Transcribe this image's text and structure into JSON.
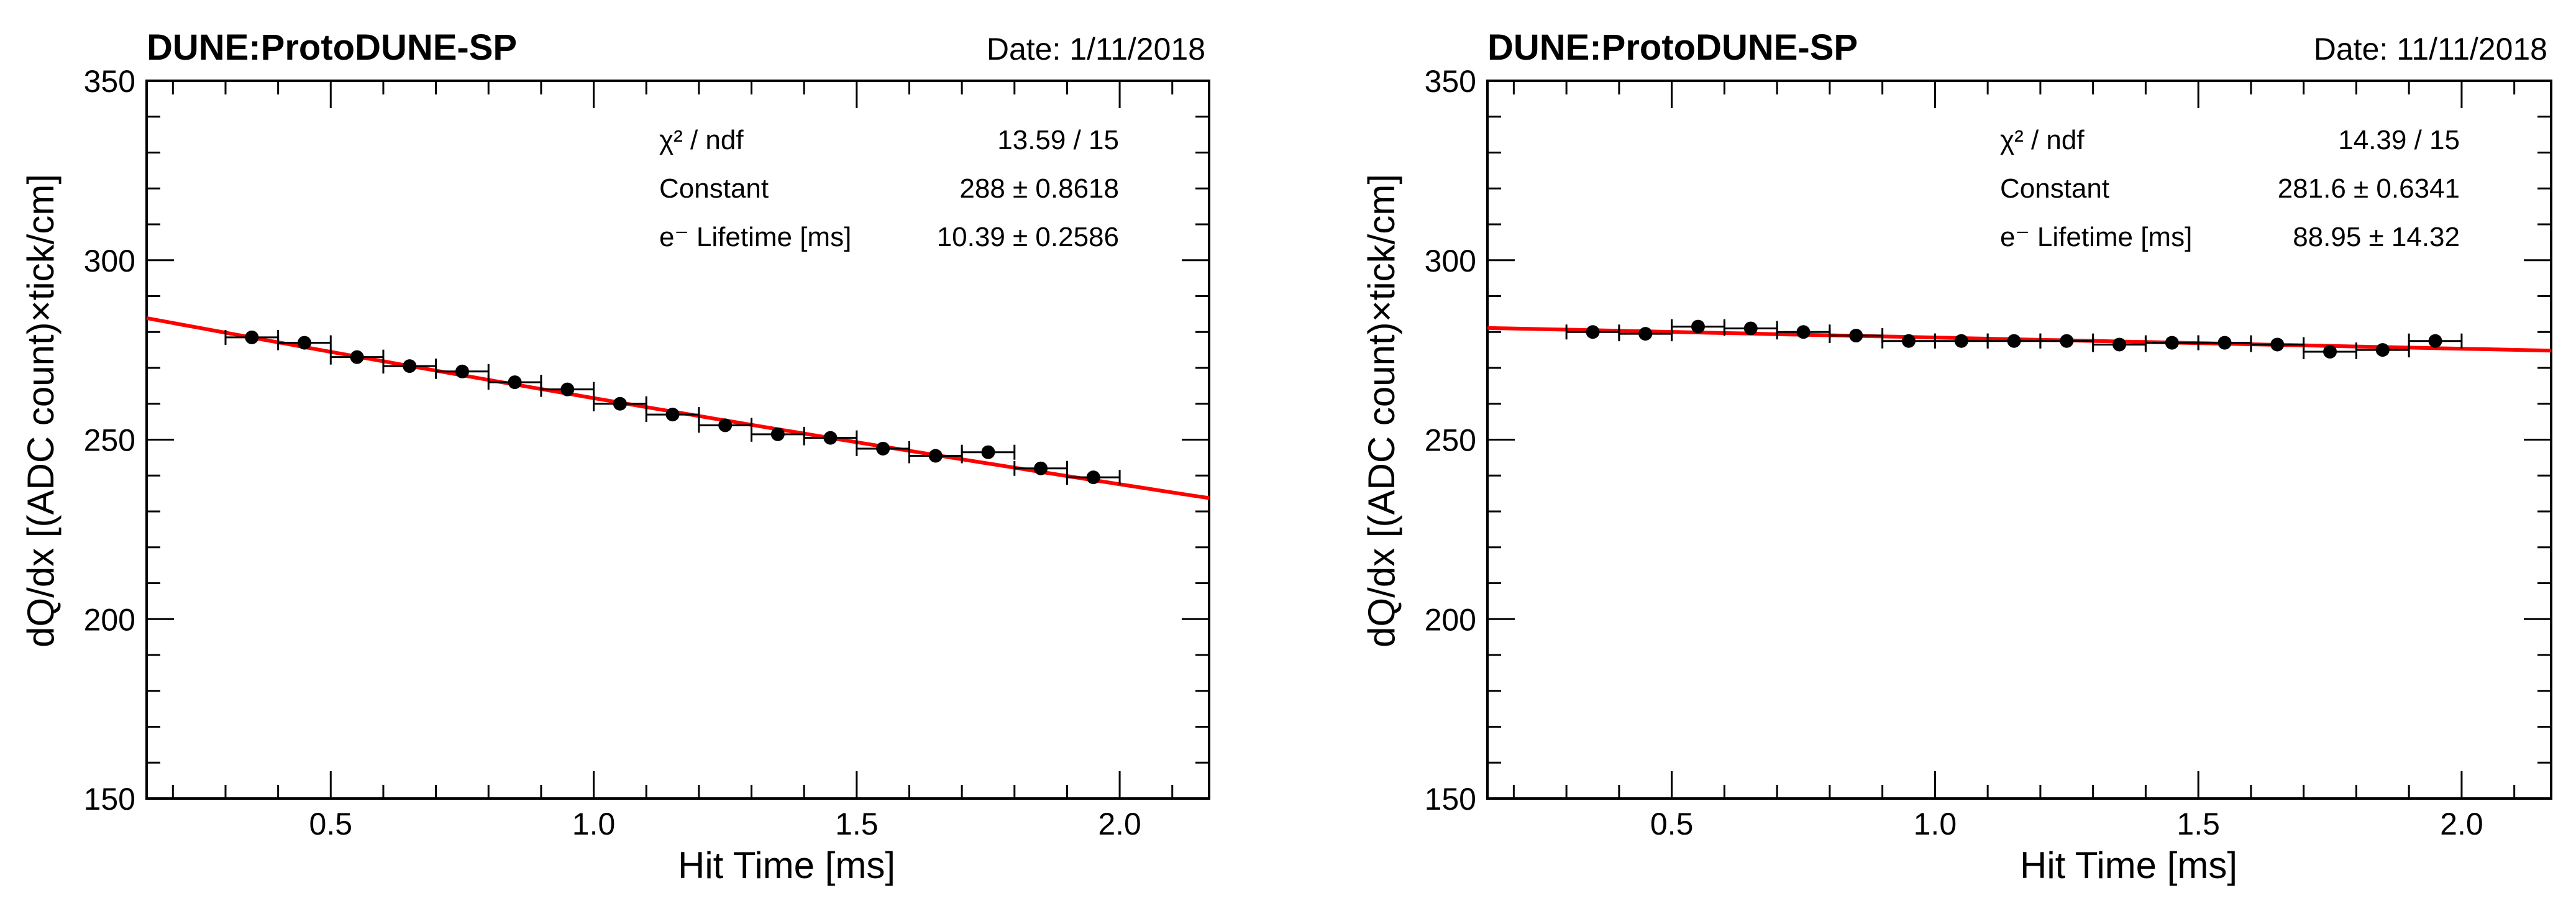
{
  "chart_data": [
    {
      "type": "scatter",
      "experiment": "DUNE:ProtoDUNE-SP",
      "date": "Date: 1/11/2018",
      "xlabel": "Hit Time [ms]",
      "ylabel": "dQ/dx [(ADC count)×tick/cm]",
      "xlim": [
        0.15,
        2.17
      ],
      "ylim": [
        150,
        350
      ],
      "xticks": [
        0.5,
        1.0,
        1.5,
        2.0
      ],
      "xtick_labels": [
        "0.5",
        "1.0",
        "1.5",
        "2.0"
      ],
      "yticks": [
        150,
        200,
        250,
        300,
        350
      ],
      "ytick_labels": [
        "150",
        "200",
        "250",
        "300",
        "350"
      ],
      "x_bin_half_width": 0.05,
      "x": [
        0.35,
        0.45,
        0.55,
        0.65,
        0.75,
        0.85,
        0.95,
        1.05,
        1.15,
        1.25,
        1.35,
        1.45,
        1.55,
        1.65,
        1.75,
        1.85,
        1.95
      ],
      "y": [
        278.5,
        277,
        273,
        270.5,
        269,
        266,
        264,
        260,
        257,
        254,
        251.5,
        250.5,
        247.5,
        245.5,
        246.5,
        242,
        239.5
      ],
      "fit": {
        "function": "exponential",
        "constant": 288,
        "lifetime_ms": 10.39
      },
      "stats": [
        {
          "label": "χ² / ndf",
          "value": "13.59 / 15"
        },
        {
          "label": "Constant",
          "value": "288 ± 0.8618"
        },
        {
          "label": "e⁻ Lifetime [ms]",
          "value": "10.39 ± 0.2586"
        }
      ],
      "colors": {
        "fit": "#ff0000",
        "points": "#000000"
      }
    },
    {
      "type": "scatter",
      "experiment": "DUNE:ProtoDUNE-SP",
      "date": "Date: 11/11/2018",
      "xlabel": "Hit Time [ms]",
      "ylabel": "dQ/dx [(ADC count)×tick/cm]",
      "xlim": [
        0.15,
        2.17
      ],
      "ylim": [
        150,
        350
      ],
      "xticks": [
        0.5,
        1.0,
        1.5,
        2.0
      ],
      "xtick_labels": [
        "0.5",
        "1.0",
        "1.5",
        "2.0"
      ],
      "yticks": [
        150,
        200,
        250,
        300,
        350
      ],
      "ytick_labels": [
        "150",
        "200",
        "250",
        "300",
        "350"
      ],
      "x_bin_half_width": 0.05,
      "x": [
        0.35,
        0.45,
        0.55,
        0.65,
        0.75,
        0.85,
        0.95,
        1.05,
        1.15,
        1.25,
        1.35,
        1.45,
        1.55,
        1.65,
        1.75,
        1.85,
        1.95
      ],
      "y": [
        280,
        279.5,
        281.5,
        281,
        280,
        279,
        277.5,
        277.5,
        277.5,
        277.5,
        276.5,
        277,
        277,
        276.5,
        274.5,
        275,
        277.5
      ],
      "fit": {
        "function": "exponential",
        "constant": 281.6,
        "lifetime_ms": 88.95
      },
      "stats": [
        {
          "label": "χ² / ndf",
          "value": "14.39 / 15"
        },
        {
          "label": "Constant",
          "value": "281.6 ± 0.6341"
        },
        {
          "label": "e⁻ Lifetime [ms]",
          "value": "88.95 ± 14.32"
        }
      ],
      "colors": {
        "fit": "#ff0000",
        "points": "#000000"
      }
    }
  ]
}
